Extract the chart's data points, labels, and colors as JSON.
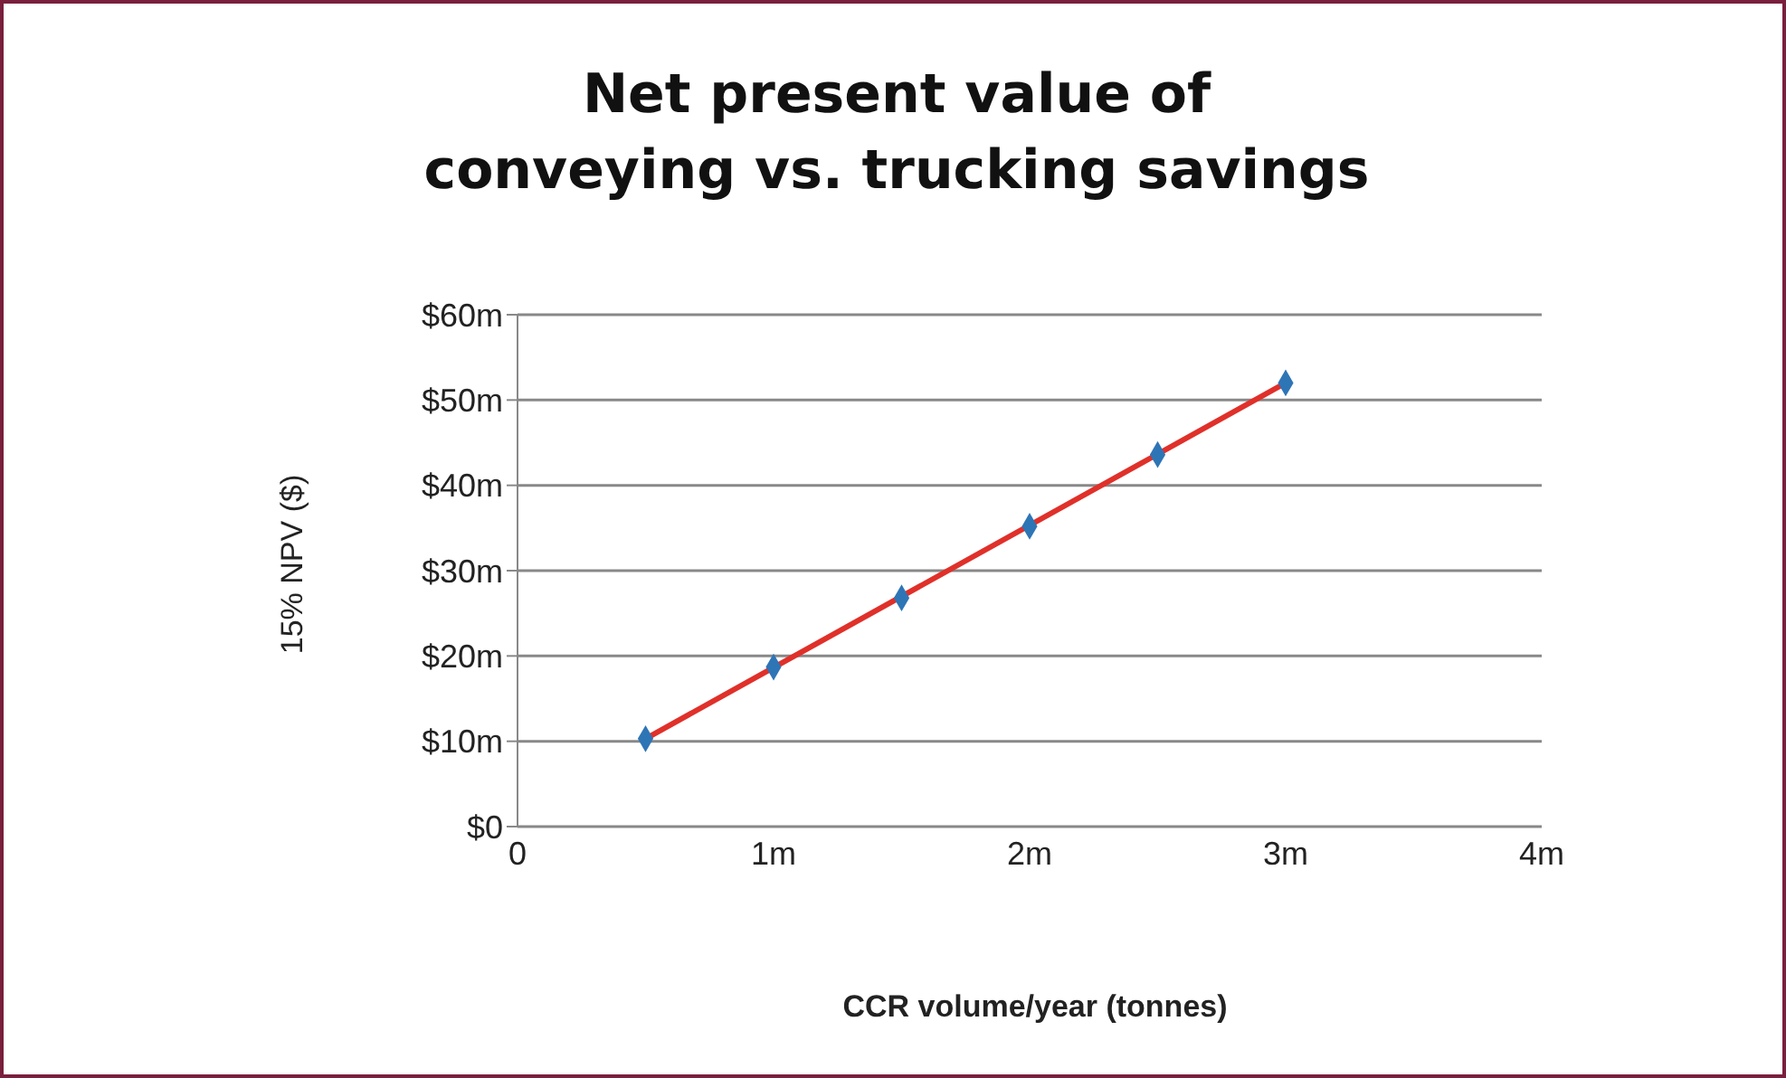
{
  "chart_data": {
    "type": "scatter",
    "title": "Net present value of\nconveying vs. trucking savings",
    "xlabel": "CCR volume/year (tonnes)",
    "ylabel": "15% NPV ($)",
    "xlim": [
      0,
      4
    ],
    "xticks": [
      0,
      {
        "value": 1,
        "label": "1m"
      },
      {
        "value": 2,
        "label": "2m"
      },
      {
        "value": 3,
        "label": "3m"
      },
      {
        "value": 4,
        "label": "4m"
      }
    ],
    "ylim": [
      0,
      60
    ],
    "yticks": [
      {
        "value": 0,
        "label": "$0"
      },
      {
        "value": 10,
        "label": "$10m"
      },
      {
        "value": 20,
        "label": "$20m"
      },
      {
        "value": 30,
        "label": "$30m"
      },
      {
        "value": 40,
        "label": "$40m"
      },
      {
        "value": 50,
        "label": "$50m"
      },
      {
        "value": 60,
        "label": "$60m"
      }
    ],
    "grid": "y",
    "legend": false,
    "series": [
      {
        "type": "line",
        "color": "#e0302a",
        "x": [
          0.5,
          3
        ],
        "values": [
          10.3,
          52.0
        ],
        "marker": "none",
        "line_style": "solid"
      },
      {
        "color": "#2e75b6",
        "x": [
          0.5,
          1,
          1.5,
          2,
          2.5,
          3
        ],
        "values": [
          10.3,
          18.7,
          26.8,
          35.2,
          43.6,
          52.0
        ],
        "marker": "diamond"
      }
    ]
  }
}
